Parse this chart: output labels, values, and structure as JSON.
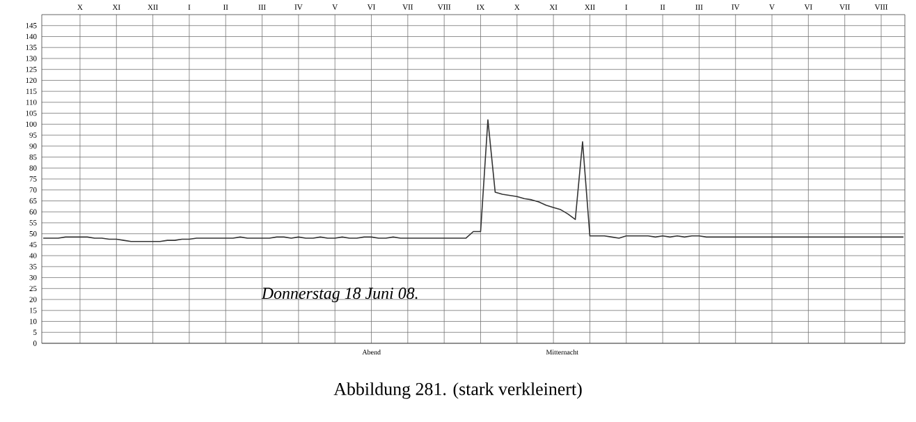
{
  "chart_data": {
    "type": "line",
    "title": "Abbildung 281. (stark verkleinert)",
    "annotations": [
      "Donnerstag 18 Juni 08.",
      "Abend",
      "Mitternacht"
    ],
    "categories": [
      null,
      null,
      null,
      null,
      null,
      "X",
      null,
      null,
      null,
      null,
      "XI",
      null,
      null,
      null,
      null,
      "XII",
      null,
      null,
      null,
      null,
      "I",
      null,
      null,
      null,
      null,
      "II",
      null,
      null,
      null,
      null,
      "III",
      null,
      null,
      null,
      null,
      "IV",
      null,
      null,
      null,
      null,
      "V",
      null,
      null,
      null,
      null,
      "VI",
      null,
      null,
      null,
      null,
      "VII",
      null,
      null,
      null,
      null,
      "VIII",
      null,
      null,
      null,
      null,
      "IX",
      null,
      null,
      null,
      null,
      "X",
      null,
      null,
      null,
      null,
      "XI",
      null,
      null,
      null,
      null,
      "XII",
      null,
      null,
      null,
      null,
      "I",
      null,
      null,
      null,
      null,
      "II",
      null,
      null,
      null,
      null,
      "III",
      null,
      null,
      null,
      null,
      "IV",
      null,
      null,
      null,
      null,
      "V",
      null,
      null,
      null,
      null,
      "VI",
      null,
      null,
      null,
      null,
      "VII",
      null,
      null,
      null,
      null,
      "VIII",
      null,
      null,
      null
    ],
    "ylim": [
      0,
      150
    ],
    "yticks": [
      0,
      5,
      10,
      15,
      20,
      25,
      30,
      35,
      40,
      45,
      50,
      55,
      60,
      65,
      70,
      75,
      80,
      85,
      90,
      95,
      100,
      105,
      110,
      115,
      120,
      125,
      130,
      135,
      140,
      145
    ],
    "grid": true,
    "marker": "none",
    "line_style": "solid",
    "series": [
      {
        "color": "#333333",
        "values": [
          48,
          48,
          48,
          48.5,
          48.5,
          48.5,
          48.5,
          48,
          48,
          47.5,
          47.5,
          47,
          46.5,
          46.5,
          46.5,
          46.5,
          46.5,
          47,
          47,
          47.5,
          47.5,
          48,
          48,
          48,
          48,
          48,
          48,
          48.5,
          48,
          48,
          48,
          48,
          48.5,
          48.5,
          48,
          48.5,
          48,
          48,
          48.5,
          48,
          48,
          48.5,
          48,
          48,
          48.5,
          48.5,
          48,
          48,
          48.5,
          48,
          48,
          48,
          48,
          48,
          48,
          48,
          48,
          48,
          48,
          51,
          51,
          102,
          69,
          68,
          67.5,
          67,
          66,
          65.5,
          64.5,
          63,
          62,
          61,
          59,
          56.5,
          92,
          49,
          49,
          49,
          48.5,
          48,
          49,
          49,
          49,
          49,
          48.5,
          49,
          48.5,
          49,
          48.5,
          49,
          49,
          48.5,
          48.5,
          48.5,
          48.5,
          48.5,
          48.5,
          48.5,
          48.5,
          48.5,
          48.5,
          48.5,
          48.5,
          48.5,
          48.5,
          48.5,
          48.5,
          48.5,
          48.5,
          48.5,
          48.5,
          48.5,
          48.5,
          48.5,
          48.5,
          48.5,
          48.5,
          48.5,
          48.5
        ]
      }
    ]
  }
}
